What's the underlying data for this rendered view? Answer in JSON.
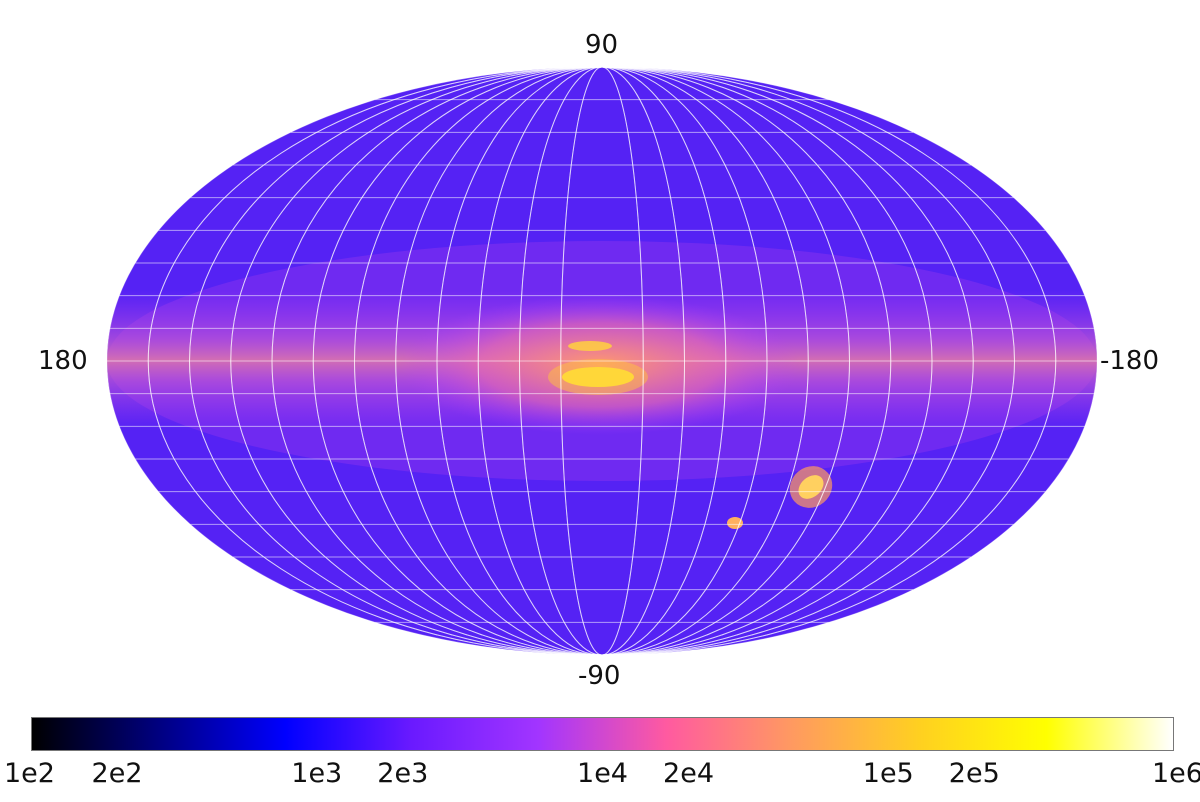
{
  "map": {
    "projection": "Mollweide",
    "graticule": true,
    "labels": {
      "north": "90",
      "south": "-90",
      "left": "180",
      "right": "-180"
    },
    "features": [
      "galactic plane band",
      "bright galactic center",
      "Large Magellanic Cloud",
      "Small Magellanic Cloud"
    ]
  },
  "colorbar": {
    "scale": "log",
    "min": 100,
    "max": 1000000,
    "colormap": "gnuplot2",
    "colors": [
      "#000000",
      "#000080",
      "#0000ff",
      "#6a1aff",
      "#a235ff",
      "#ff5aa0",
      "#ff9a60",
      "#ffd020",
      "#ffff00",
      "#ffffff"
    ],
    "tick_values": [
      100,
      200,
      1000,
      2000,
      10000,
      20000,
      100000,
      200000,
      1000000
    ],
    "tick_labels": [
      "1e2",
      "2e2",
      "1e3",
      "2e3",
      "1e4",
      "2e4",
      "1e5",
      "2e5",
      "1e6"
    ]
  }
}
